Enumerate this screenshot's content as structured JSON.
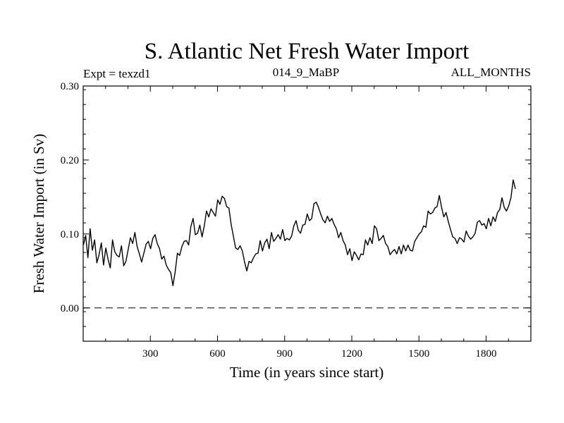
{
  "chart_data": {
    "type": "line",
    "title": "S. Atlantic Net Fresh Water Import",
    "subtitle_left": "Expt = texzd1",
    "subtitle_center": "014_9_MaBP",
    "subtitle_right": "ALL_MONTHS",
    "xlabel": "Time (in years since start)",
    "ylabel": "Fresh Water Import (in Sv)",
    "xlim": [
      0,
      2000
    ],
    "ylim": [
      -0.045,
      0.3
    ],
    "x_ticks": [
      300,
      600,
      900,
      1200,
      1500,
      1800
    ],
    "x_tick_labels": [
      "300",
      "600",
      "900",
      "1200",
      "1500",
      "1800"
    ],
    "y_ticks": [
      0.0,
      0.1,
      0.2,
      0.3
    ],
    "y_tick_labels": [
      "0.00",
      "0.10",
      "0.20",
      "0.30"
    ],
    "reference_line": {
      "y": 0.0,
      "style": "dashed"
    },
    "series": [
      {
        "name": "Net fresh water import",
        "x_start": 1,
        "x_step": 10,
        "values": [
          0.085,
          0.098,
          0.068,
          0.107,
          0.078,
          0.092,
          0.061,
          0.072,
          0.088,
          0.058,
          0.081,
          0.066,
          0.054,
          0.092,
          0.076,
          0.071,
          0.069,
          0.084,
          0.057,
          0.063,
          0.079,
          0.095,
          0.087,
          0.102,
          0.083,
          0.073,
          0.062,
          0.074,
          0.086,
          0.09,
          0.08,
          0.094,
          0.099,
          0.087,
          0.08,
          0.066,
          0.07,
          0.058,
          0.052,
          0.048,
          0.03,
          0.049,
          0.074,
          0.071,
          0.083,
          0.09,
          0.091,
          0.085,
          0.11,
          0.121,
          0.099,
          0.101,
          0.112,
          0.096,
          0.111,
          0.131,
          0.123,
          0.134,
          0.129,
          0.124,
          0.146,
          0.14,
          0.151,
          0.148,
          0.137,
          0.135,
          0.113,
          0.097,
          0.081,
          0.079,
          0.084,
          0.077,
          0.062,
          0.05,
          0.063,
          0.061,
          0.068,
          0.073,
          0.074,
          0.091,
          0.077,
          0.088,
          0.093,
          0.08,
          0.102,
          0.09,
          0.094,
          0.099,
          0.093,
          0.106,
          0.091,
          0.094,
          0.092,
          0.097,
          0.111,
          0.118,
          0.105,
          0.101,
          0.112,
          0.113,
          0.127,
          0.118,
          0.121,
          0.141,
          0.143,
          0.136,
          0.127,
          0.119,
          0.115,
          0.124,
          0.117,
          0.121,
          0.113,
          0.107,
          0.095,
          0.102,
          0.091,
          0.085,
          0.072,
          0.08,
          0.064,
          0.076,
          0.071,
          0.065,
          0.073,
          0.072,
          0.092,
          0.085,
          0.095,
          0.087,
          0.111,
          0.107,
          0.091,
          0.094,
          0.098,
          0.087,
          0.083,
          0.072,
          0.076,
          0.079,
          0.073,
          0.083,
          0.073,
          0.085,
          0.077,
          0.085,
          0.078,
          0.077,
          0.09,
          0.095,
          0.1,
          0.103,
          0.111,
          0.109,
          0.131,
          0.127,
          0.129,
          0.135,
          0.137,
          0.152,
          0.136,
          0.123,
          0.129,
          0.117,
          0.106,
          0.096,
          0.094,
          0.087,
          0.095,
          0.093,
          0.089,
          0.104,
          0.097,
          0.093,
          0.096,
          0.101,
          0.116,
          0.118,
          0.112,
          0.114,
          0.107,
          0.121,
          0.111,
          0.123,
          0.117,
          0.129,
          0.133,
          0.149,
          0.136,
          0.131,
          0.138,
          0.149,
          0.173,
          0.161
        ]
      }
    ]
  }
}
